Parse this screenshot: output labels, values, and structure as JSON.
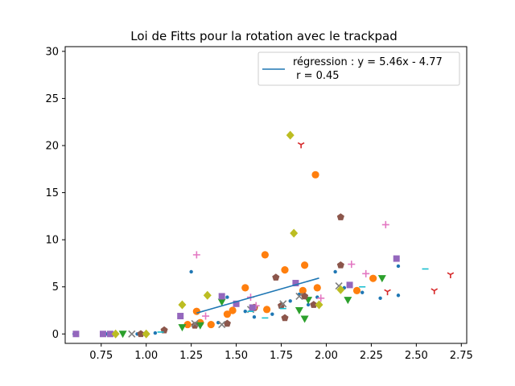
{
  "chart_data": {
    "type": "scatter",
    "title": "Loi de Fitts pour la rotation avec le trackpad",
    "xlabel": "",
    "ylabel": "",
    "xlim": [
      0.55,
      2.78
    ],
    "ylim": [
      -1.0,
      30.5
    ],
    "x_ticks": [
      "0.75",
      "1.00",
      "1.25",
      "1.50",
      "1.75",
      "2.00",
      "2.25",
      "2.50",
      "2.75"
    ],
    "y_ticks": [
      "0",
      "5",
      "10",
      "15",
      "20",
      "25",
      "30"
    ],
    "grid": false,
    "legend": {
      "placement": "top-right",
      "entries": [
        {
          "label": "régression : y = 5.46x - 4.77",
          "sublabel": " r = 0.45",
          "color": "#1f77b4"
        }
      ]
    },
    "regression": {
      "slope": 5.46,
      "intercept": -4.77,
      "x_range": [
        1.28,
        1.96
      ],
      "color": "#1f77b4"
    },
    "series": [
      {
        "marker": "point",
        "color": "#1f77b4",
        "points": [
          [
            0.6,
            0
          ],
          [
            0.78,
            0
          ],
          [
            0.95,
            0
          ],
          [
            1.05,
            0.1
          ],
          [
            1.25,
            6.6
          ],
          [
            1.3,
            1.0
          ],
          [
            1.4,
            1.2
          ],
          [
            1.45,
            3.9
          ],
          [
            1.5,
            3.1
          ],
          [
            1.55,
            2.4
          ],
          [
            1.6,
            1.8
          ],
          [
            1.7,
            2.1
          ],
          [
            1.8,
            3.5
          ],
          [
            1.85,
            4.2
          ],
          [
            1.9,
            3.1
          ],
          [
            1.95,
            3.9
          ],
          [
            2.05,
            6.6
          ],
          [
            2.1,
            4.9
          ],
          [
            2.3,
            3.8
          ],
          [
            2.4,
            4.1
          ],
          [
            2.4,
            7.2
          ],
          [
            2.2,
            4.4
          ]
        ]
      },
      {
        "marker": "circle",
        "color": "#ff7f0e",
        "points": [
          [
            1.23,
            1.0
          ],
          [
            1.28,
            2.4
          ],
          [
            1.3,
            1.2
          ],
          [
            1.36,
            1.0
          ],
          [
            1.45,
            2.1
          ],
          [
            1.48,
            2.5
          ],
          [
            1.55,
            4.9
          ],
          [
            1.6,
            2.8
          ],
          [
            1.66,
            8.4
          ],
          [
            1.67,
            2.6
          ],
          [
            1.77,
            6.8
          ],
          [
            1.87,
            4.6
          ],
          [
            1.88,
            7.3
          ],
          [
            1.94,
            16.9
          ],
          [
            1.95,
            4.9
          ],
          [
            2.17,
            4.6
          ],
          [
            2.26,
            5.9
          ]
        ]
      },
      {
        "marker": "triangle_down",
        "color": "#2ca02c",
        "points": [
          [
            0.87,
            0
          ],
          [
            1.2,
            0.7
          ],
          [
            1.3,
            0.9
          ],
          [
            1.42,
            3.4
          ],
          [
            1.85,
            2.5
          ],
          [
            1.88,
            1.6
          ],
          [
            1.9,
            3.6
          ],
          [
            2.12,
            3.6
          ],
          [
            2.31,
            5.9
          ]
        ]
      },
      {
        "marker": "pentagon",
        "color": "#8c564b",
        "points": [
          [
            0.97,
            0
          ],
          [
            1.1,
            0.4
          ],
          [
            1.27,
            0.9
          ],
          [
            1.45,
            1.1
          ],
          [
            1.6,
            2.8
          ],
          [
            1.72,
            6.0
          ],
          [
            1.75,
            3.0
          ],
          [
            1.77,
            1.7
          ],
          [
            1.88,
            4.0
          ],
          [
            1.93,
            3.1
          ],
          [
            2.08,
            12.4
          ],
          [
            2.08,
            7.3
          ]
        ]
      },
      {
        "marker": "x",
        "color": "#7f7f7f",
        "points": [
          [
            0.92,
            0
          ],
          [
            1.27,
            1.1
          ],
          [
            1.42,
            1.0
          ],
          [
            1.58,
            2.6
          ],
          [
            1.76,
            3.2
          ],
          [
            1.85,
            4.0
          ],
          [
            2.07,
            5.1
          ]
        ]
      },
      {
        "marker": "plus",
        "color": "#e377c2",
        "points": [
          [
            1.28,
            8.4
          ],
          [
            1.33,
            1.9
          ],
          [
            1.58,
            3.9
          ],
          [
            1.61,
            3.0
          ],
          [
            1.97,
            3.8
          ],
          [
            2.14,
            7.4
          ],
          [
            2.22,
            6.4
          ],
          [
            2.33,
            11.6
          ]
        ]
      },
      {
        "marker": "square",
        "color": "#9467bd",
        "points": [
          [
            0.61,
            0
          ],
          [
            0.76,
            0
          ],
          [
            0.8,
            0
          ],
          [
            1.19,
            1.9
          ],
          [
            1.42,
            4.0
          ],
          [
            1.5,
            3.2
          ],
          [
            1.59,
            2.8
          ],
          [
            1.83,
            5.4
          ],
          [
            2.13,
            5.2
          ],
          [
            2.39,
            8.0
          ]
        ]
      },
      {
        "marker": "diamond",
        "color": "#bcbd22",
        "points": [
          [
            0.83,
            0
          ],
          [
            1.0,
            0
          ],
          [
            1.2,
            3.1
          ],
          [
            1.34,
            4.1
          ],
          [
            1.8,
            21.1
          ],
          [
            1.82,
            10.7
          ],
          [
            1.96,
            3.1
          ],
          [
            2.08,
            4.7
          ]
        ]
      },
      {
        "marker": "tri_down",
        "color": "#d62728",
        "points": [
          [
            1.86,
            20.1
          ],
          [
            2.34,
            4.5
          ],
          [
            2.6,
            4.6
          ],
          [
            2.69,
            6.3
          ]
        ]
      },
      {
        "marker": "hline",
        "color": "#17becf",
        "points": [
          [
            1.08,
            0.2
          ],
          [
            1.58,
            2.4
          ],
          [
            1.66,
            1.7
          ],
          [
            1.76,
            2.7
          ],
          [
            2.2,
            5.0
          ],
          [
            2.55,
            6.9
          ]
        ]
      }
    ]
  }
}
